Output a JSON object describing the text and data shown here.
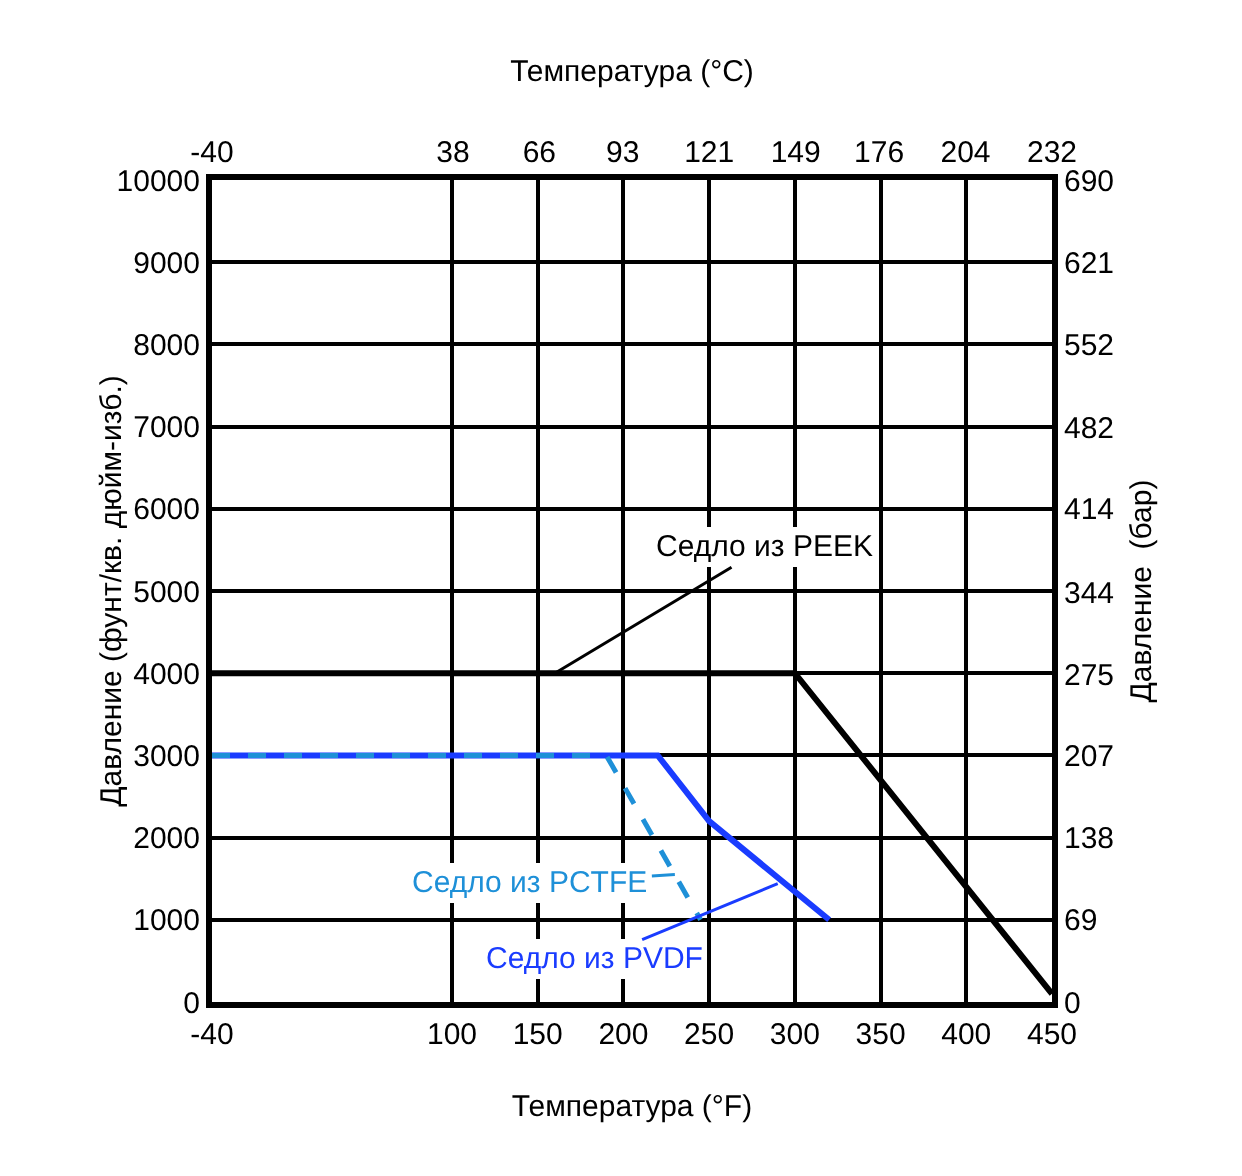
{
  "chart_data": {
    "type": "line",
    "xlabel": "Температура (°F)",
    "x2label": "Температура (°C)",
    "ylabel": "Давление (фунт/кв. дюйм-изб.)",
    "y2label": "Давление  (бар)",
    "xlim": [
      -40,
      450
    ],
    "xticks": [
      -40,
      100,
      150,
      200,
      250,
      300,
      350,
      400,
      450
    ],
    "x2lim": [
      -40,
      232
    ],
    "x2ticks": [
      -40,
      38,
      66,
      93,
      121,
      149,
      176,
      204,
      232
    ],
    "ylim": [
      0,
      10000
    ],
    "yticks": [
      0,
      1000,
      2000,
      3000,
      4000,
      5000,
      6000,
      7000,
      8000,
      9000,
      10000
    ],
    "y2lim": [
      0,
      690
    ],
    "y2ticks": [
      0,
      69,
      138,
      207,
      275,
      344,
      414,
      482,
      552,
      621,
      690
    ],
    "grid": true,
    "marker": "none",
    "series": [
      {
        "color": "#000000",
        "x": [
          -40,
          300,
          450
        ],
        "values": [
          4000,
          4000,
          100
        ]
      },
      {
        "color": "#1a3cff",
        "x": [
          -40,
          220,
          250,
          320
        ],
        "values": [
          3000,
          3000,
          2200,
          1000
        ]
      },
      {
        "color": "#1e90d8",
        "line_style": "dashed",
        "x": [
          -40,
          190,
          245
        ],
        "values": [
          3000,
          3000,
          1000
        ]
      }
    ],
    "annotations": [
      {
        "text": "Седло из PEEK",
        "x": 160,
        "y": 4000
      },
      {
        "text": "Седло из PVDF",
        "x": 290,
        "y": 1440
      },
      {
        "text": "Седло из PCTFE",
        "x": 230,
        "y": 1550
      }
    ]
  }
}
